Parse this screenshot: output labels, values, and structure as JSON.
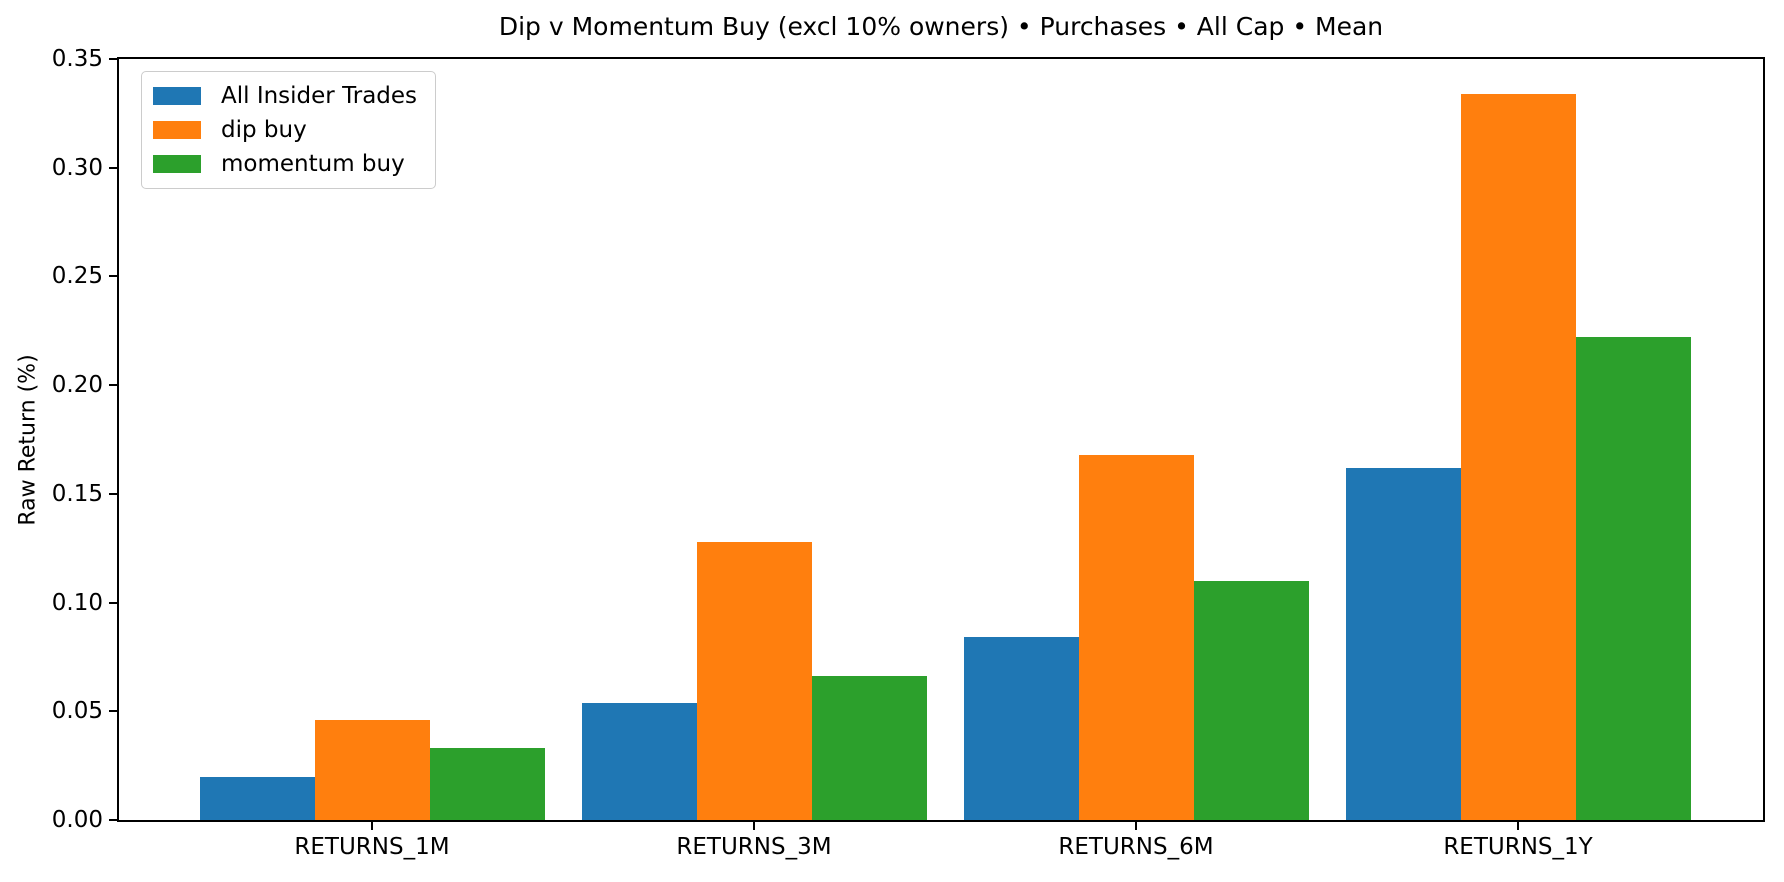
{
  "chart_data": {
    "type": "bar",
    "title": "Dip v Momentum Buy (excl 10% owners) • Purchases • All Cap • Mean",
    "ylabel": "Raw Return (%)",
    "xlabel": "",
    "categories": [
      "RETURNS_1M",
      "RETURNS_3M",
      "RETURNS_6M",
      "RETURNS_1Y"
    ],
    "series": [
      {
        "name": "All Insider Trades",
        "color": "#1f77b4",
        "values": [
          0.02,
          0.054,
          0.084,
          0.162
        ]
      },
      {
        "name": "dip buy",
        "color": "#ff7f0e",
        "values": [
          0.046,
          0.128,
          0.168,
          0.334
        ]
      },
      {
        "name": "momentum buy",
        "color": "#2ca02c",
        "values": [
          0.033,
          0.066,
          0.11,
          0.222
        ]
      }
    ],
    "ylim": [
      0,
      0.35
    ],
    "yticks": [
      "0.00",
      "0.05",
      "0.10",
      "0.15",
      "0.20",
      "0.25",
      "0.30",
      "0.35"
    ],
    "grid": false,
    "legend_position": "upper left",
    "background_color": "#ffffff",
    "axis_color": "#000000"
  }
}
